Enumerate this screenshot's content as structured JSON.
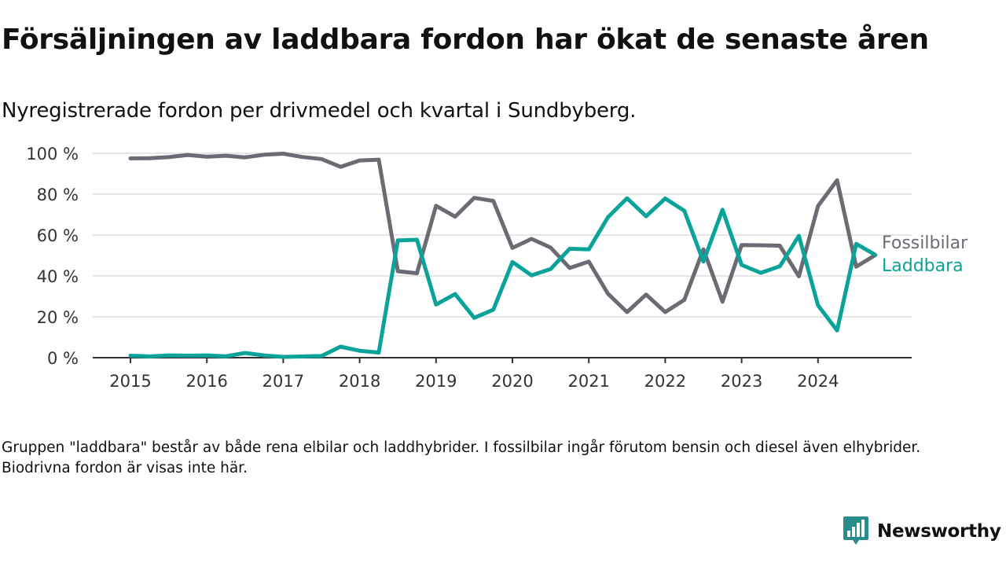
{
  "header": {
    "title": "Försäljningen av laddbara fordon har ökat de senaste åren",
    "subtitle": "Nyregistrerade fordon per drivmedel och kvartal i Sundbyberg."
  },
  "colors": {
    "fossil": "#6b6b73",
    "laddbara": "#0aa39a",
    "grid": "#dddddd",
    "axis": "#333333",
    "brand": "#2a8d8d"
  },
  "chart_data": {
    "type": "line",
    "x_start_year": 2015,
    "quarters_per_year": 4,
    "x_ticks": [
      "2015",
      "2016",
      "2017",
      "2018",
      "2019",
      "2020",
      "2021",
      "2022",
      "2023",
      "2024"
    ],
    "y_ticks": [
      "0 %",
      "20 %",
      "40 %",
      "60 %",
      "80 %",
      "100 %"
    ],
    "y_tick_values": [
      0,
      20,
      40,
      60,
      80,
      100
    ],
    "ylim": [
      0,
      100
    ],
    "y_unit": "%",
    "grid": true,
    "legend": "inline labels at right end of lines",
    "series": [
      {
        "name": "Fossilbilar",
        "color_key": "fossil",
        "values": [
          97.5,
          97.6,
          98.1,
          99.2,
          98.3,
          98.8,
          98.0,
          99.3,
          99.8,
          98.2,
          97.2,
          93.4,
          96.5,
          96.9,
          42.3,
          41.3,
          74.3,
          69.0,
          78.2,
          76.7,
          53.7,
          58.1,
          53.9,
          43.9,
          47.0,
          31.3,
          22.3,
          30.9,
          22.3,
          28.3,
          53.0,
          27.4,
          55.1,
          55.0,
          54.8,
          39.8,
          74.2,
          86.8,
          44.5,
          50.2
        ]
      },
      {
        "name": "Laddbara",
        "color_key": "laddbara",
        "values": [
          1.0,
          0.6,
          1.1,
          1.0,
          1.1,
          0.7,
          2.3,
          1.1,
          0.4,
          0.6,
          0.8,
          5.4,
          3.4,
          2.5,
          57.4,
          57.7,
          26.0,
          31.1,
          19.5,
          23.5,
          46.8,
          40.3,
          43.4,
          53.3,
          53.0,
          68.7,
          78.0,
          69.2,
          77.9,
          71.9,
          47.0,
          72.4,
          45.4,
          41.5,
          44.7,
          59.6,
          25.6,
          13.3,
          55.7,
          50.3
        ]
      }
    ]
  },
  "note": "Gruppen \"laddbara\" består av både rena elbilar och laddhybrider. I fossilbilar ingår förutom bensin och diesel även elhybrider. Biodrivna fordon är visas inte här.",
  "brand": {
    "name": "Newsworthy",
    "logo_icon": "newsworthy-logo-icon"
  }
}
